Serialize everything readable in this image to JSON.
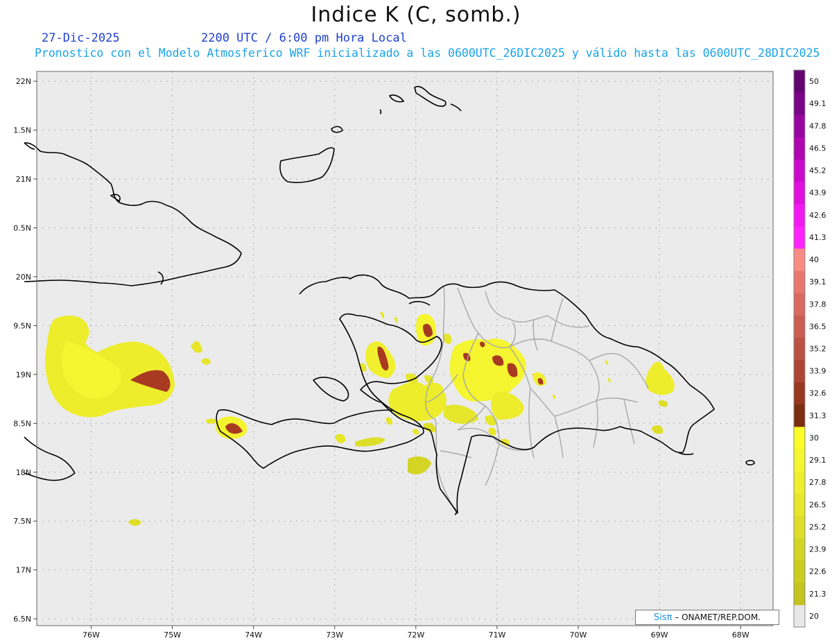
{
  "title": "Indice K (C, somb.)",
  "date": "27-Dic-2025",
  "valid_time": "2200 UTC / 6:00 pm Hora Local",
  "subtitle": "Pronostico con el Modelo Atmosferico WRF inicializado a las 0600UTC_26DIC2025 y válido hasta las  0600UTC_28DIC2025",
  "credit": {
    "brand": "Sisπ",
    "text": " – ONAMET/REP.DOM."
  },
  "lat_ticks": [
    {
      "value": 22,
      "label": "22N"
    },
    {
      "value": 21.5,
      "label": "1.5N"
    },
    {
      "value": 21,
      "label": "21N"
    },
    {
      "value": 20.5,
      "label": "0.5N"
    },
    {
      "value": 20,
      "label": "20N"
    },
    {
      "value": 19.5,
      "label": "9.5N"
    },
    {
      "value": 19,
      "label": "19N"
    },
    {
      "value": 18.5,
      "label": "8.5N"
    },
    {
      "value": 18,
      "label": "18N"
    },
    {
      "value": 17.5,
      "label": "7.5N"
    },
    {
      "value": 17,
      "label": "17N"
    },
    {
      "value": 16.5,
      "label": "6.5N"
    }
  ],
  "lon_ticks": [
    {
      "value": -76,
      "label": "76W"
    },
    {
      "value": -75,
      "label": "75W"
    },
    {
      "value": -74,
      "label": "74W"
    },
    {
      "value": -73,
      "label": "73W"
    },
    {
      "value": -72,
      "label": "72W"
    },
    {
      "value": -71,
      "label": "71W"
    },
    {
      "value": -70,
      "label": "70W"
    },
    {
      "value": -69,
      "label": "69W"
    },
    {
      "value": -68,
      "label": "68W"
    }
  ],
  "lon_range": [
    -76.67,
    -67.6
  ],
  "lat_range": [
    16.43,
    22.1
  ],
  "colorbar": {
    "labels": [
      "20",
      "21.3",
      "22.6",
      "23.9",
      "25.2",
      "26.5",
      "27.8",
      "29.1",
      "30",
      "31.3",
      "32.6",
      "33.9",
      "35.2",
      "36.5",
      "37.8",
      "39.1",
      "40",
      "41.3",
      "42.6",
      "43.9",
      "45.2",
      "46.5",
      "47.8",
      "49.1",
      "50"
    ],
    "colors": [
      "#e8e8e8",
      "#c4c41c",
      "#cccc1e",
      "#d4d424",
      "#dede28",
      "#e6e62a",
      "#eeee2c",
      "#f6f62e",
      "#fcfc26",
      "#7c2e10",
      "#983820",
      "#ac4632",
      "#bc5244",
      "#ca5e52",
      "#d86a60",
      "#e8786e",
      "#fa8a84",
      "#ff24ff",
      "#f218f2",
      "#e010e0",
      "#cc0acc",
      "#b006b0",
      "#9806a0",
      "#7c0488",
      "#640470"
    ]
  },
  "colors": {
    "ocean": "#ebebeb",
    "coast": "#000000",
    "borders": "#a8a8a8",
    "high_k": "#a83a22"
  }
}
